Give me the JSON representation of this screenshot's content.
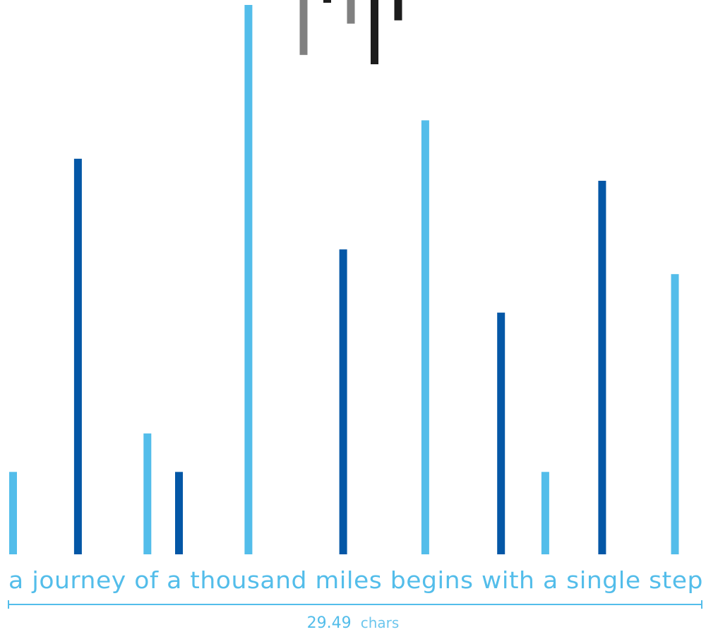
{
  "chart_data": {
    "type": "bar",
    "phrase": "a journey of a thousand miles begins with a single step",
    "measure": {
      "value": "29.49",
      "unit": "chars"
    },
    "colors": {
      "light": "#53bdea",
      "dark": "#0457a6",
      "grey": "#808080",
      "black": "#1c1c1c"
    },
    "ylim": [
      0,
      100
    ],
    "word_bars": [
      {
        "word": "a",
        "value": 15,
        "color": "light"
      },
      {
        "word": "journey",
        "value": 72,
        "color": "dark"
      },
      {
        "word": "of",
        "value": 22,
        "color": "light"
      },
      {
        "word": "a",
        "value": 15,
        "color": "dark"
      },
      {
        "word": "thousand",
        "value": 100,
        "color": "light"
      },
      {
        "word": "miles",
        "value": 55.5,
        "color": "dark"
      },
      {
        "word": "begins",
        "value": 79,
        "color": "light"
      },
      {
        "word": "with",
        "value": 44,
        "color": "dark"
      },
      {
        "word": "a",
        "value": 15,
        "color": "light"
      },
      {
        "word": "single",
        "value": 68,
        "color": "dark"
      },
      {
        "word": "step",
        "value": 51,
        "color": "light"
      }
    ],
    "top_bars": [
      {
        "value": 10,
        "color": "grey"
      },
      {
        "value": 0.5,
        "color": "black"
      },
      {
        "value": 4.3,
        "color": "grey"
      },
      {
        "value": 11.7,
        "color": "black"
      },
      {
        "value": 3.7,
        "color": "black"
      }
    ]
  }
}
